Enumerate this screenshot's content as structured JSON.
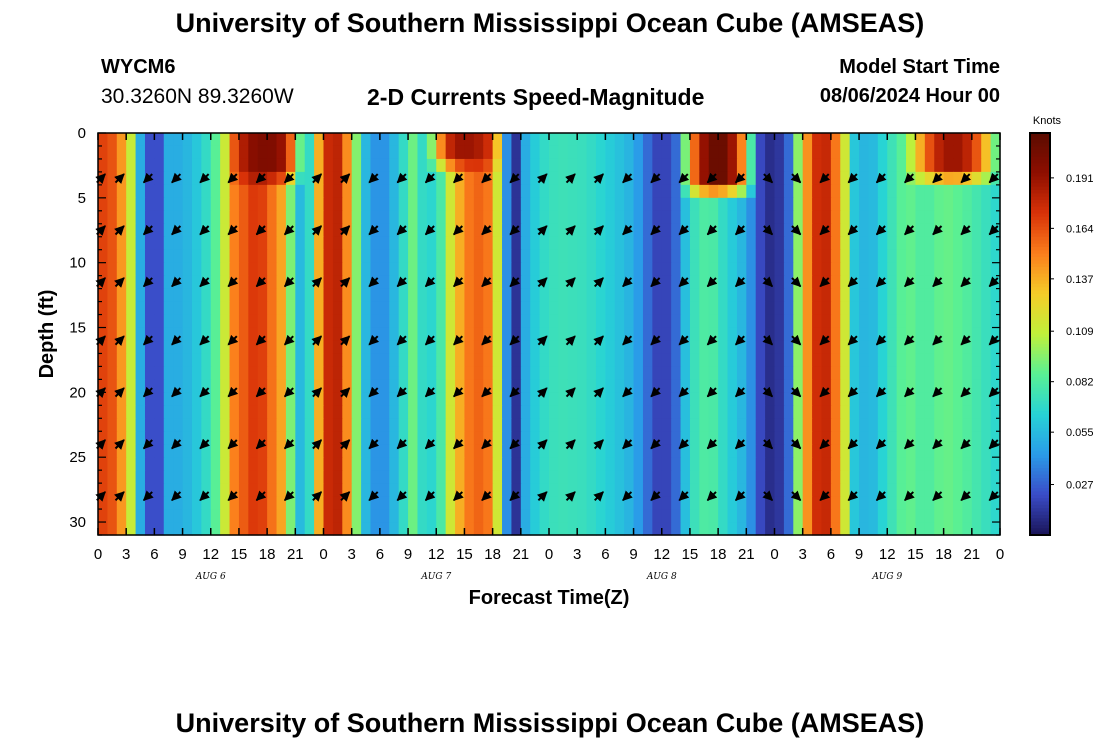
{
  "header": {
    "title": "University of Southern Mississippi Ocean Cube (AMSEAS)",
    "station_id": "WYCM6",
    "station_coords": "30.3260N  89.3260W",
    "plot_title": "2-D Currents Speed-Magnitude",
    "model_start_label": "Model Start Time",
    "model_start_value": "08/06/2024 Hour 00"
  },
  "footer": {
    "title": "University of Southern Mississippi Ocean Cube (AMSEAS)"
  },
  "chart_data": {
    "type": "heatmap",
    "title": "2-D Currents Speed-Magnitude",
    "xlabel": "Forecast Time(Z)",
    "ylabel": "Depth (ft)",
    "x_hours": [
      0,
      96
    ],
    "xtick_labels": [
      "0",
      "3",
      "6",
      "9",
      "12",
      "15",
      "18",
      "21",
      "0",
      "3",
      "6",
      "9",
      "12",
      "15",
      "18",
      "21",
      "0",
      "3",
      "6",
      "9",
      "12",
      "15",
      "18",
      "21",
      "0",
      "3",
      "6",
      "9",
      "12",
      "15",
      "18",
      "21",
      "0"
    ],
    "day_labels": [
      {
        "hour": 12,
        "label": "AUG 6"
      },
      {
        "hour": 36,
        "label": "AUG 7"
      },
      {
        "hour": 60,
        "label": "AUG 8"
      },
      {
        "hour": 84,
        "label": "AUG 9"
      }
    ],
    "ylim": [
      0,
      31
    ],
    "yticks": [
      0,
      5,
      10,
      15,
      20,
      25,
      30
    ],
    "colorbar": {
      "units": "Knots",
      "min": 0,
      "max": 0.215,
      "ticks": [
        0.027,
        0.055,
        0.082,
        0.109,
        0.137,
        0.164,
        0.191
      ],
      "tick_labels": [
        "0.027",
        "0.055",
        "0.082",
        "0.109",
        "0.137",
        "0.164",
        "0.191"
      ],
      "colors": [
        "#1a1457",
        "#3a4cc8",
        "#2a9be8",
        "#27d3d6",
        "#59f094",
        "#c0f03a",
        "#f5cd28",
        "#fb7e1c",
        "#d93208",
        "#8e0e00",
        "#5a0c00"
      ]
    },
    "speed_profile": [
      {
        "hour": 0,
        "value": 0.17
      },
      {
        "hour": 2,
        "value": 0.16
      },
      {
        "hour": 3.5,
        "value": 0.11
      },
      {
        "hour": 4.5,
        "value": 0.05
      },
      {
        "hour": 6,
        "value": 0.008
      },
      {
        "hour": 7.5,
        "value": 0.05
      },
      {
        "hour": 9,
        "value": 0.05
      },
      {
        "hour": 10.5,
        "value": 0.06
      },
      {
        "hour": 12,
        "value": 0.075
      },
      {
        "hour": 13.2,
        "value": 0.1
      },
      {
        "hour": 14.5,
        "value": 0.15
      },
      {
        "hour": 17,
        "value": 0.175
      },
      {
        "hour": 19.5,
        "value": 0.14
      },
      {
        "hour": 21,
        "value": 0.07
      },
      {
        "hour": 22,
        "value": 0.04
      },
      {
        "hour": 23,
        "value": 0.1
      },
      {
        "hour": 24,
        "value": 0.175
      },
      {
        "hour": 25.5,
        "value": 0.18
      },
      {
        "hour": 27,
        "value": 0.13
      },
      {
        "hour": 28,
        "value": 0.06
      },
      {
        "hour": 30,
        "value": 0.035
      },
      {
        "hour": 32,
        "value": 0.06
      },
      {
        "hour": 33.5,
        "value": 0.09
      },
      {
        "hour": 35,
        "value": 0.06
      },
      {
        "hour": 36.5,
        "value": 0.08
      },
      {
        "hour": 38,
        "value": 0.13
      },
      {
        "hour": 40,
        "value": 0.16
      },
      {
        "hour": 42,
        "value": 0.15
      },
      {
        "hour": 43.5,
        "value": 0.04
      },
      {
        "hour": 44.5,
        "value": 0.012
      },
      {
        "hour": 45.5,
        "value": 0.05
      },
      {
        "hour": 47,
        "value": 0.068
      },
      {
        "hour": 49,
        "value": 0.075
      },
      {
        "hour": 52,
        "value": 0.072
      },
      {
        "hour": 55,
        "value": 0.06
      },
      {
        "hour": 57,
        "value": 0.05
      },
      {
        "hour": 58.5,
        "value": 0.03
      },
      {
        "hour": 60,
        "value": 0.013
      },
      {
        "hour": 61.5,
        "value": 0.03
      },
      {
        "hour": 63,
        "value": 0.07
      },
      {
        "hour": 65,
        "value": 0.085
      },
      {
        "hour": 67,
        "value": 0.065
      },
      {
        "hour": 69,
        "value": 0.05
      },
      {
        "hour": 70.5,
        "value": 0.02
      },
      {
        "hour": 72,
        "value": 0.005
      },
      {
        "hour": 73.5,
        "value": 0.03
      },
      {
        "hour": 75,
        "value": 0.13
      },
      {
        "hour": 77,
        "value": 0.19
      },
      {
        "hour": 79,
        "value": 0.14
      },
      {
        "hour": 80.5,
        "value": 0.06
      },
      {
        "hour": 82,
        "value": 0.05
      },
      {
        "hour": 84,
        "value": 0.07
      },
      {
        "hour": 86,
        "value": 0.09
      },
      {
        "hour": 88,
        "value": 0.08
      },
      {
        "hour": 90,
        "value": 0.09
      },
      {
        "hour": 92,
        "value": 0.085
      },
      {
        "hour": 94,
        "value": 0.075
      },
      {
        "hour": 96,
        "value": 0.065
      }
    ],
    "surface_layer_boost": [
      {
        "hour_start": 14,
        "hour_end": 22,
        "depth_max": 3,
        "value": 0.2
      },
      {
        "hour_start": 35,
        "hour_end": 43,
        "depth_max": 2,
        "value": 0.19
      },
      {
        "hour_start": 62,
        "hour_end": 70,
        "depth_max": 4,
        "value": 0.21
      },
      {
        "hour_start": 86,
        "hour_end": 96,
        "depth_max": 3,
        "value": 0.19
      }
    ],
    "arrow_depths_ft": [
      3.5,
      7.5,
      11.5,
      16,
      20,
      24,
      28
    ],
    "arrow_hours": [
      0,
      2,
      5,
      8,
      11,
      14,
      17,
      20,
      23,
      26,
      29,
      32,
      35,
      38,
      41,
      44,
      47,
      50,
      53,
      56,
      59,
      62,
      65,
      68,
      71,
      74,
      77,
      80,
      83,
      86,
      89,
      92,
      95
    ],
    "arrow_directions_deg": [
      45,
      45,
      225,
      225,
      225,
      225,
      225,
      225,
      45,
      45,
      225,
      225,
      225,
      225,
      225,
      225,
      45,
      45,
      45,
      225,
      225,
      225,
      225,
      225,
      315,
      315,
      225,
      225,
      225,
      225,
      225,
      225,
      225
    ]
  }
}
